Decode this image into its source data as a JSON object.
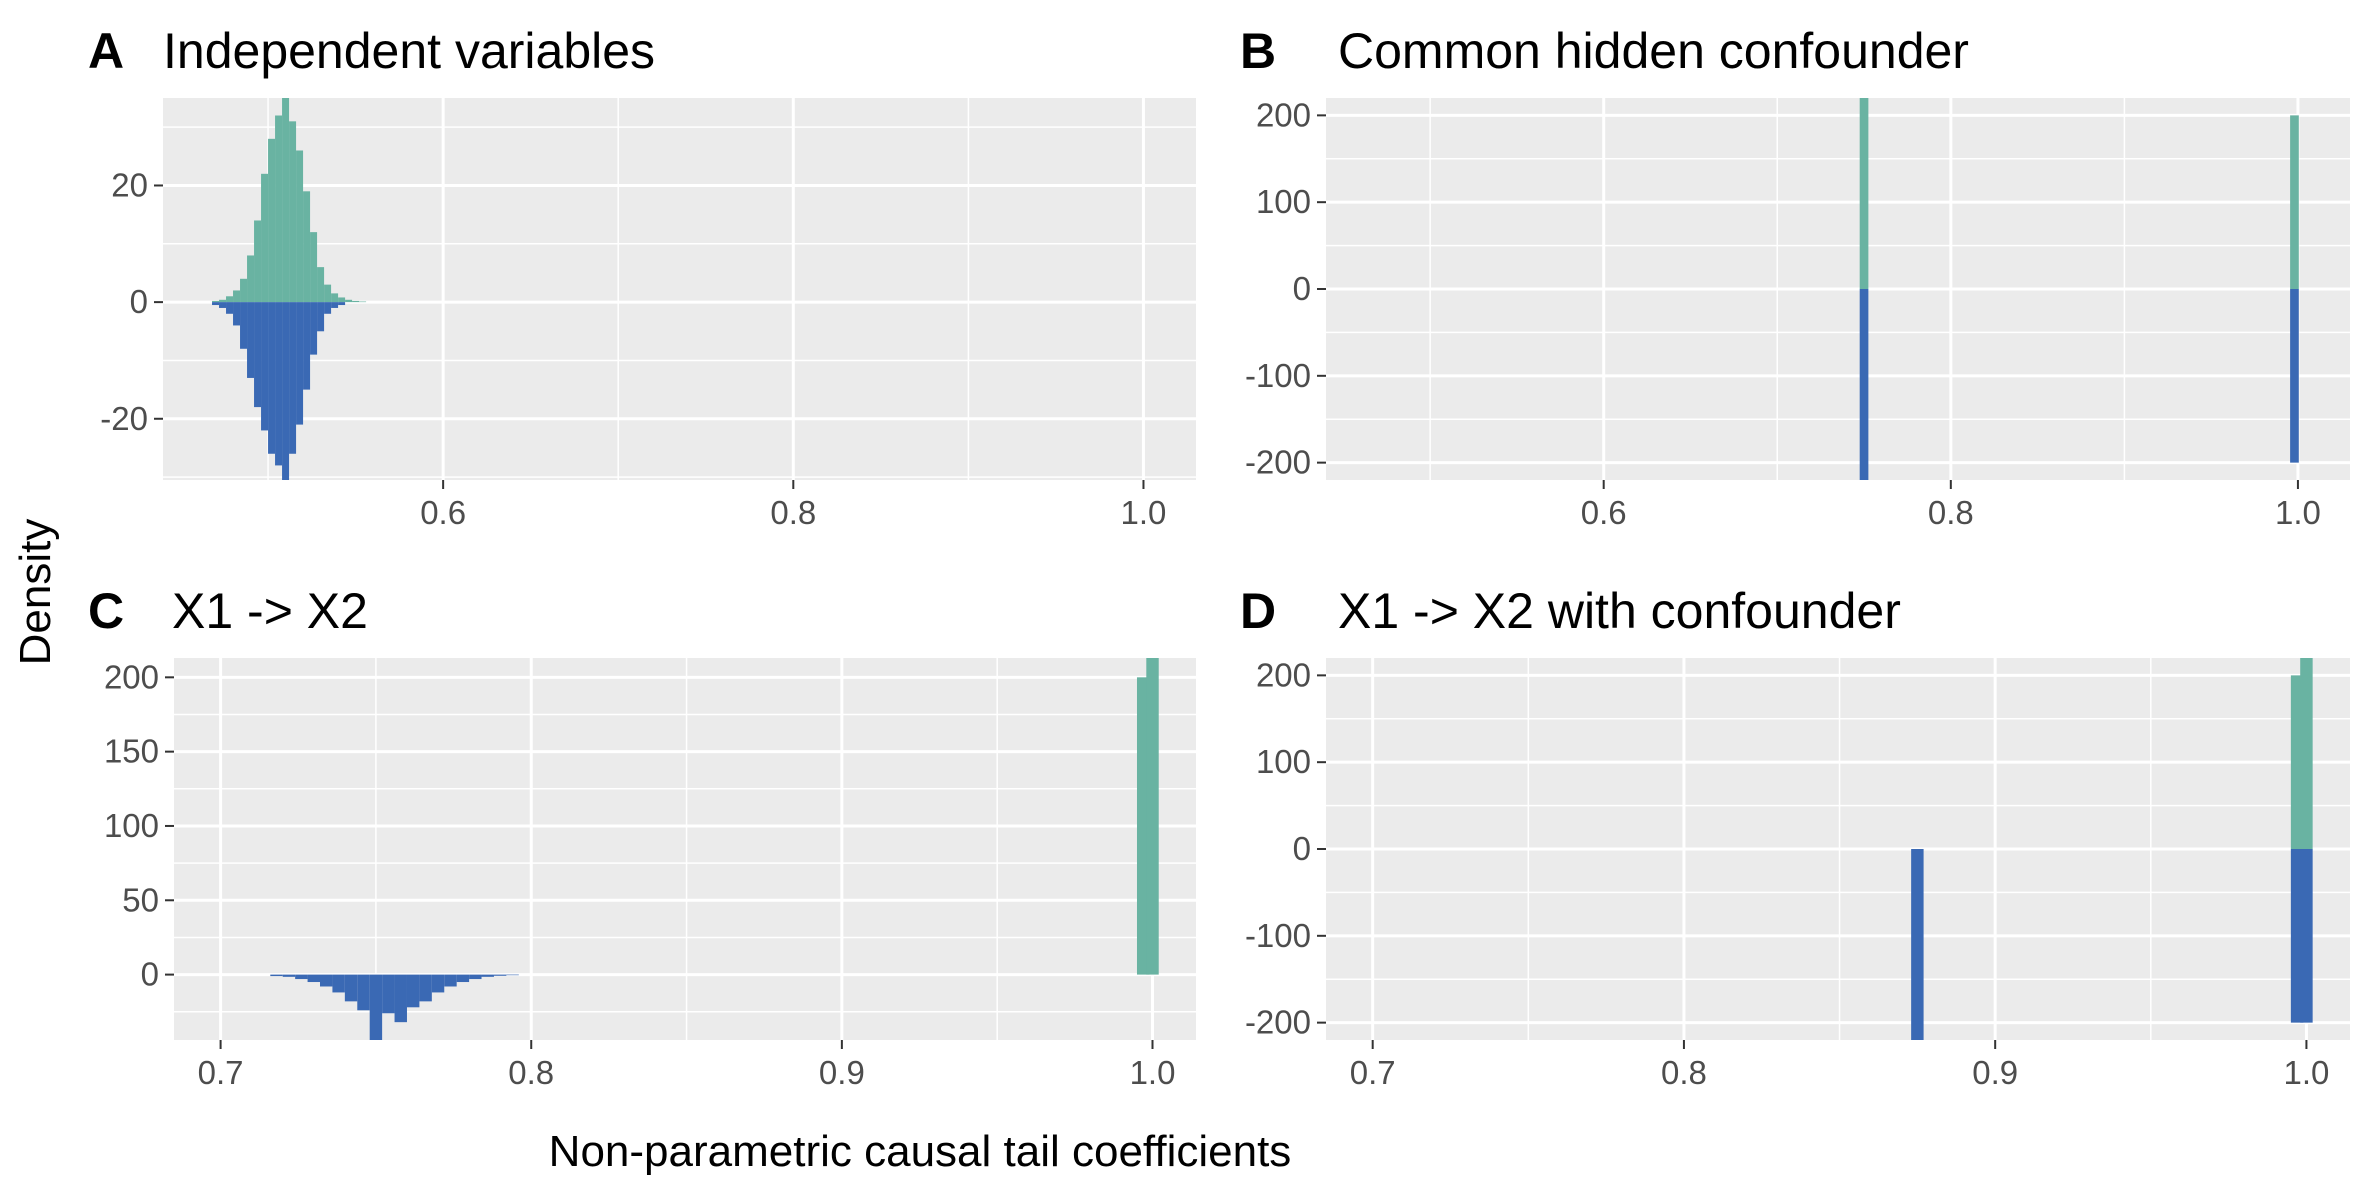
{
  "figure": {
    "xlabel": "Non-parametric causal tail coefficients",
    "ylabel": "Density"
  },
  "colors": {
    "panel_bg": "#ebebeb",
    "grid": "#ffffff",
    "series_teal": "#69b3a2",
    "series_blue": "#3a69b4",
    "tick_text": "#4d4d4d"
  },
  "chart_data": [
    {
      "type": "bar",
      "panel": "A",
      "title": "Independent variables",
      "xlim": [
        0.44,
        1.03
      ],
      "ylim": [
        -30.5,
        35
      ],
      "x_ticks": [
        0.6,
        0.8,
        1.0
      ],
      "x_tick_labels": [
        "0.6",
        "0.8",
        "1.0"
      ],
      "y_ticks": [
        -20,
        0,
        20
      ],
      "y_tick_labels": [
        "-20",
        "0",
        "20"
      ],
      "bin_width": 0.004,
      "series": [
        {
          "color": "teal",
          "bins": [
            [
              0.47,
              0.2
            ],
            [
              0.474,
              0.4
            ],
            [
              0.478,
              1
            ],
            [
              0.482,
              2
            ],
            [
              0.486,
              4
            ],
            [
              0.49,
              8
            ],
            [
              0.494,
              14
            ],
            [
              0.498,
              22
            ],
            [
              0.502,
              28
            ],
            [
              0.506,
              32
            ],
            [
              0.51,
              35
            ],
            [
              0.514,
              31
            ],
            [
              0.518,
              26
            ],
            [
              0.522,
              19
            ],
            [
              0.526,
              12
            ],
            [
              0.53,
              6
            ],
            [
              0.534,
              3
            ],
            [
              0.538,
              1.5
            ],
            [
              0.542,
              0.8
            ],
            [
              0.546,
              0.4
            ],
            [
              0.55,
              0.2
            ],
            [
              0.554,
              0.1
            ]
          ]
        },
        {
          "color": "blue",
          "bins": [
            [
              0.47,
              -0.5
            ],
            [
              0.474,
              -1
            ],
            [
              0.478,
              -2
            ],
            [
              0.482,
              -4
            ],
            [
              0.486,
              -8
            ],
            [
              0.49,
              -13
            ],
            [
              0.494,
              -18
            ],
            [
              0.498,
              -22
            ],
            [
              0.502,
              -26
            ],
            [
              0.506,
              -28
            ],
            [
              0.51,
              -30.5
            ],
            [
              0.514,
              -26
            ],
            [
              0.518,
              -21
            ],
            [
              0.522,
              -15
            ],
            [
              0.526,
              -9
            ],
            [
              0.53,
              -5
            ],
            [
              0.534,
              -2
            ],
            [
              0.538,
              -1
            ],
            [
              0.542,
              -0.5
            ]
          ]
        }
      ]
    },
    {
      "type": "bar",
      "panel": "B",
      "title": "Common hidden confounder",
      "xlim": [
        0.44,
        1.03
      ],
      "ylim": [
        -220,
        220
      ],
      "x_ticks": [
        0.6,
        0.8,
        1.0
      ],
      "x_tick_labels": [
        "0.6",
        "0.8",
        "1.0"
      ],
      "y_ticks": [
        -200,
        -100,
        0,
        100,
        200
      ],
      "y_tick_labels": [
        "-200",
        "-100",
        "0",
        "100",
        "200"
      ],
      "bin_width": 0.005,
      "series": [
        {
          "color": "teal",
          "bins": [
            [
              0.75,
              220
            ],
            [
              0.998,
              200
            ]
          ]
        },
        {
          "color": "blue",
          "bins": [
            [
              0.75,
              -220
            ],
            [
              0.998,
              -200
            ]
          ]
        }
      ]
    },
    {
      "type": "bar",
      "panel": "C",
      "title": "X1 -> X2",
      "xlim": [
        0.685,
        1.014
      ],
      "ylim": [
        -44,
        213
      ],
      "x_ticks": [
        0.7,
        0.8,
        0.9,
        1.0
      ],
      "x_tick_labels": [
        "0.7",
        "0.8",
        "0.9",
        "1.0"
      ],
      "y_ticks": [
        0,
        50,
        100,
        150,
        200
      ],
      "y_tick_labels": [
        "0",
        "50",
        "100",
        "150",
        "200"
      ],
      "bin_width": 0.004,
      "series": [
        {
          "color": "teal",
          "bins": [
            [
              0.997,
              200
            ],
            [
              1.0,
              213
            ]
          ]
        },
        {
          "color": "blue",
          "bins": [
            [
              0.718,
              -1
            ],
            [
              0.722,
              -1.5
            ],
            [
              0.726,
              -3
            ],
            [
              0.73,
              -5
            ],
            [
              0.734,
              -8
            ],
            [
              0.738,
              -12
            ],
            [
              0.742,
              -18
            ],
            [
              0.746,
              -24
            ],
            [
              0.75,
              -44
            ],
            [
              0.754,
              -26
            ],
            [
              0.758,
              -32
            ],
            [
              0.762,
              -22
            ],
            [
              0.766,
              -18
            ],
            [
              0.77,
              -12
            ],
            [
              0.774,
              -8
            ],
            [
              0.778,
              -5
            ],
            [
              0.782,
              -3
            ],
            [
              0.786,
              -1.5
            ],
            [
              0.79,
              -0.8
            ],
            [
              0.794,
              -0.4
            ]
          ]
        }
      ]
    },
    {
      "type": "bar",
      "panel": "D",
      "title": "X1 -> X2 with confounder",
      "xlim": [
        0.685,
        1.014
      ],
      "ylim": [
        -220,
        220
      ],
      "x_ticks": [
        0.7,
        0.8,
        0.9,
        1.0
      ],
      "x_tick_labels": [
        "0.7",
        "0.8",
        "0.9",
        "1.0"
      ],
      "y_ticks": [
        -200,
        -100,
        0,
        100,
        200
      ],
      "y_tick_labels": [
        "-200",
        "-100",
        "0",
        "100",
        "200"
      ],
      "bin_width": 0.004,
      "series": [
        {
          "color": "teal",
          "bins": [
            [
              0.997,
              200
            ],
            [
              1.0,
              220
            ]
          ]
        },
        {
          "color": "blue",
          "bins": [
            [
              0.875,
              -220
            ],
            [
              0.997,
              -200
            ],
            [
              1.0,
              -200
            ]
          ]
        }
      ]
    }
  ]
}
